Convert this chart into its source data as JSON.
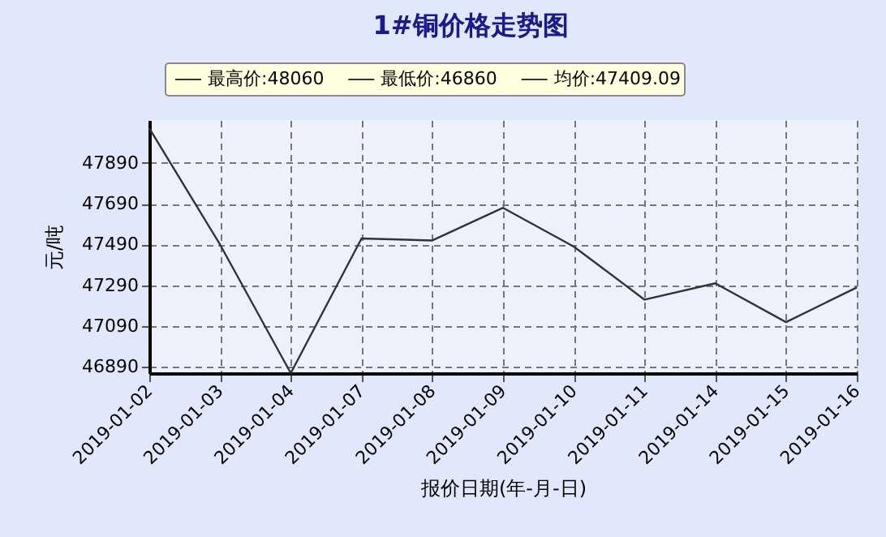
{
  "chart_data": {
    "type": "line",
    "title": "1#铜价格走势图",
    "xlabel": "报价日期(年-月-日)",
    "ylabel": "元/吨",
    "categories": [
      "2019-01-02",
      "2019-01-03",
      "2019-01-04",
      "2019-01-07",
      "2019-01-08",
      "2019-01-09",
      "2019-01-10",
      "2019-01-11",
      "2019-01-14",
      "2019-01-15",
      "2019-01-16"
    ],
    "series": [
      {
        "color": "#333333",
        "values": [
          48060,
          47490,
          46860,
          47520,
          47510,
          47670,
          47480,
          47220,
          47300,
          47110,
          47280
        ]
      }
    ],
    "ylim": [
      46860,
      48100
    ],
    "yticks": [
      46890,
      47090,
      47290,
      47490,
      47690,
      47890
    ],
    "annotations": [
      "最高价:48060",
      "最低价:46860",
      "均价:47409.09"
    ],
    "grid": true,
    "marker": "none",
    "line_style": "solid"
  }
}
